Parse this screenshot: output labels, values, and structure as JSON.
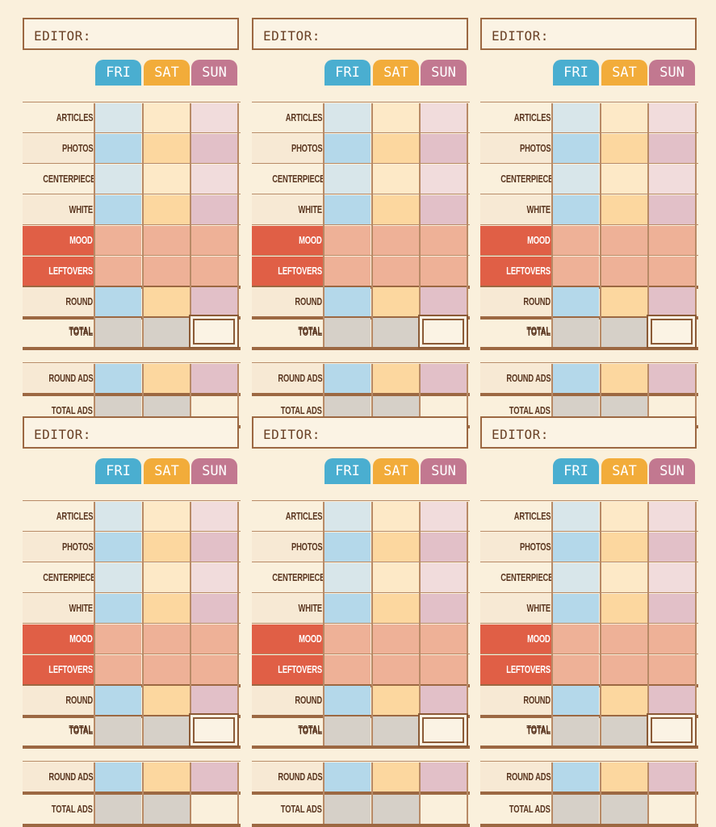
{
  "editor_label": "EDITOR:",
  "days": [
    "FRI",
    "SAT",
    "SUN"
  ],
  "rows": [
    "ARTICLES",
    "PHOTOS",
    "CENTERPIECE",
    "WHITE SPACE",
    "MOOD",
    "LEFTOVERS",
    "ROUND TOTAL",
    "TOTAL"
  ],
  "ads_rows": [
    "ROUND ADS",
    "TOTAL ADS"
  ],
  "colors": {
    "fri": "#4aaed0",
    "sat": "#f2ac3a",
    "sun": "#c27890",
    "mood_red": "#e05f46",
    "salmon": "#eeb197",
    "grey": "#d6d0c8",
    "border": "#9c6842"
  }
}
